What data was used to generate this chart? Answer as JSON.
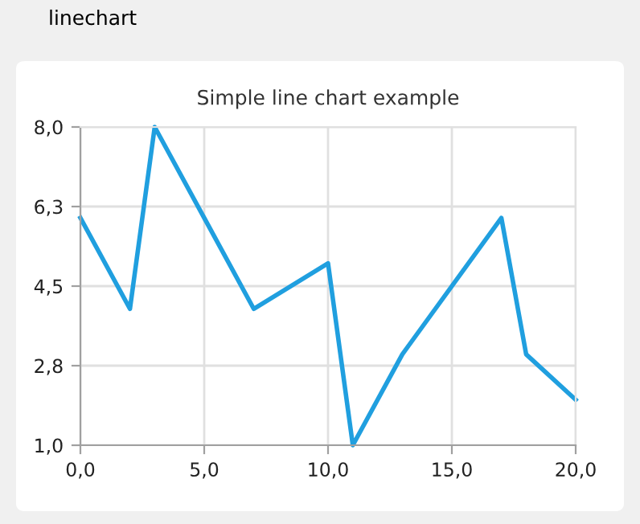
{
  "chart_data": {
    "type": "line",
    "title": "Simple line chart example",
    "annotations": [
      "linechart"
    ],
    "x": [
      0,
      2,
      3,
      7,
      10,
      11,
      13,
      17,
      18,
      20
    ],
    "series": [
      {
        "color": "#209fdf",
        "values": [
          6,
          4,
          8,
          4,
          5,
          1,
          3,
          6,
          3,
          2
        ]
      }
    ],
    "xlim": [
      0,
      20
    ],
    "xticks": [
      {
        "value": 0,
        "label": "0,0"
      },
      {
        "value": 5,
        "label": "5,0"
      },
      {
        "value": 10,
        "label": "10,0"
      },
      {
        "value": 15,
        "label": "15,0"
      },
      {
        "value": 20,
        "label": "20,0"
      }
    ],
    "ylim": [
      1,
      8
    ],
    "yticks": [
      {
        "value": 1,
        "label": "1,0"
      },
      {
        "value": 2.75,
        "label": "2,8"
      },
      {
        "value": 4.5,
        "label": "4,5"
      },
      {
        "value": 6.25,
        "label": "6,3"
      },
      {
        "value": 8,
        "label": "8,0"
      }
    ],
    "grid": true,
    "legend": false,
    "marker": "none",
    "line_style": "solid"
  }
}
